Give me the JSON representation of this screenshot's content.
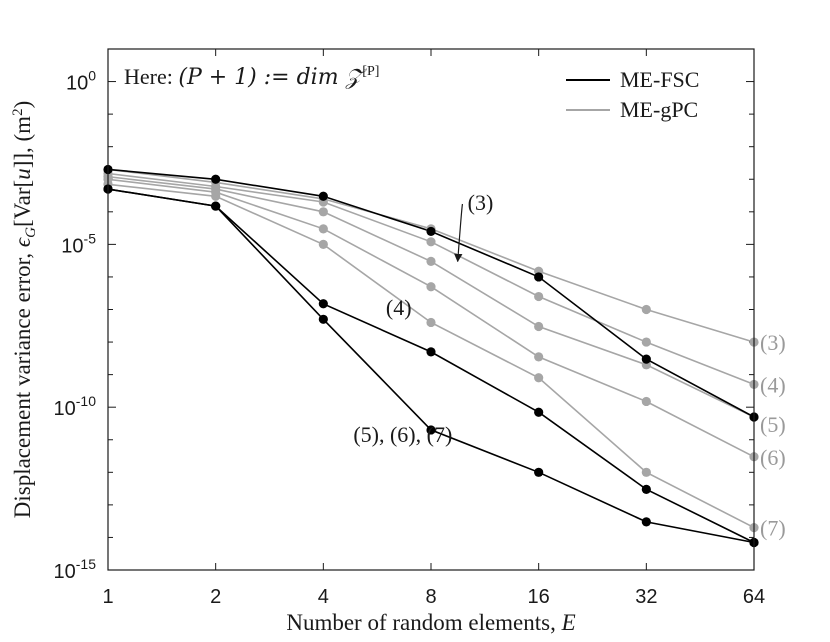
{
  "chart_data": {
    "type": "line",
    "xlabel": "Number of random elements, E",
    "xlabel_parts": {
      "text": "Number of random elements, ",
      "var": "E"
    },
    "ylabel": "Displacement variance error, ϵ_G[Var[u]], (m²)",
    "ylabel_parts": {
      "pre": "Displacement variance error, ",
      "eps": "ϵ",
      "sub": "G",
      "mid": "[Var[",
      "u": "u",
      "post": "]], (m",
      "sup": "2",
      "close": ")"
    },
    "x_scale": "log2",
    "y_scale": "log10",
    "xlim": [
      1,
      64
    ],
    "ylim": [
      1e-15,
      10.0
    ],
    "x_ticks": [
      {
        "value": 1,
        "label": "1"
      },
      {
        "value": 2,
        "label": "2"
      },
      {
        "value": 4,
        "label": "4"
      },
      {
        "value": 8,
        "label": "8"
      },
      {
        "value": 16,
        "label": "16"
      },
      {
        "value": 32,
        "label": "32"
      },
      {
        "value": 64,
        "label": "64"
      }
    ],
    "y_ticks": [
      {
        "value": 1,
        "base": "10",
        "exp": "0"
      },
      {
        "value": 1e-05,
        "base": "10",
        "exp": "-5"
      },
      {
        "value": 1e-10,
        "base": "10",
        "exp": "-10"
      },
      {
        "value": 1e-15,
        "base": "10",
        "exp": "-15"
      }
    ],
    "legend": {
      "placement": "top-right",
      "entries": [
        {
          "label": "ME-FSC",
          "color": "#000000"
        },
        {
          "label": "ME-gPC",
          "color": "#a6a6a6"
        }
      ]
    },
    "note": {
      "prefix": "Here: ",
      "formula": "(P + 1) := dim 𝒵",
      "sup": "[P]"
    },
    "colors": {
      "fsc": "#000000",
      "gpc": "#a6a6a6"
    },
    "x": [
      1,
      2,
      4,
      8,
      16,
      32,
      64
    ],
    "series": [
      {
        "group": "ME-gPC",
        "order": "(3)",
        "values": [
          0.002,
          0.0008,
          0.00025,
          3e-05,
          1.5e-06,
          1e-07,
          1e-08
        ]
      },
      {
        "group": "ME-gPC",
        "order": "(4)",
        "values": [
          0.0015,
          0.0006,
          0.0002,
          1.2e-05,
          2.5e-07,
          1e-08,
          5e-10
        ]
      },
      {
        "group": "ME-gPC",
        "order": "(5)",
        "values": [
          0.0012,
          0.0005,
          0.0001,
          3e-06,
          3e-08,
          2e-09,
          5e-11
        ]
      },
      {
        "group": "ME-gPC",
        "order": "(6)",
        "values": [
          0.001,
          0.0004,
          3e-05,
          5e-07,
          3.5e-09,
          1.5e-10,
          3e-12
        ]
      },
      {
        "group": "ME-gPC",
        "order": "(7)",
        "values": [
          0.0007,
          0.0003,
          1e-05,
          4e-08,
          8e-10,
          1e-12,
          2e-14
        ]
      },
      {
        "group": "ME-FSC",
        "order": "(3)",
        "values": [
          0.002,
          0.001,
          0.0003,
          2.5e-05,
          1e-06,
          3e-09,
          5e-11
        ]
      },
      {
        "group": "ME-FSC",
        "order": "(4)",
        "values": [
          0.0005,
          0.00015,
          1.5e-07,
          5e-09,
          7e-11,
          3e-13,
          7e-15
        ]
      },
      {
        "group": "ME-FSC",
        "order": "(5), (6), (7)",
        "values": [
          0.0005,
          0.00015,
          5e-08,
          2e-11,
          1e-12,
          3e-14,
          7e-15
        ]
      }
    ],
    "annotations": [
      {
        "text": "(3)",
        "x": 11,
        "y": 0.0002,
        "arrow_to_x": 9.5,
        "arrow_to_y": 3e-06,
        "color": "black"
      },
      {
        "text": "(4)",
        "x": 6.5,
        "y": 1.2e-07,
        "color": "black"
      },
      {
        "text": "(5), (6), (7)",
        "x": 4.0,
        "y": 1.5e-11,
        "color": "black"
      },
      {
        "text": "(3)",
        "x": 64,
        "y": 1e-08,
        "color": "gray"
      },
      {
        "text": "(4)",
        "x": 64,
        "y": 5e-10,
        "color": "gray"
      },
      {
        "text": "(5)",
        "x": 64,
        "y": 3e-11,
        "color": "gray"
      },
      {
        "text": "(6)",
        "x": 64,
        "y": 3e-12,
        "color": "gray"
      },
      {
        "text": "(7)",
        "x": 64,
        "y": 2e-14,
        "color": "gray"
      }
    ]
  }
}
